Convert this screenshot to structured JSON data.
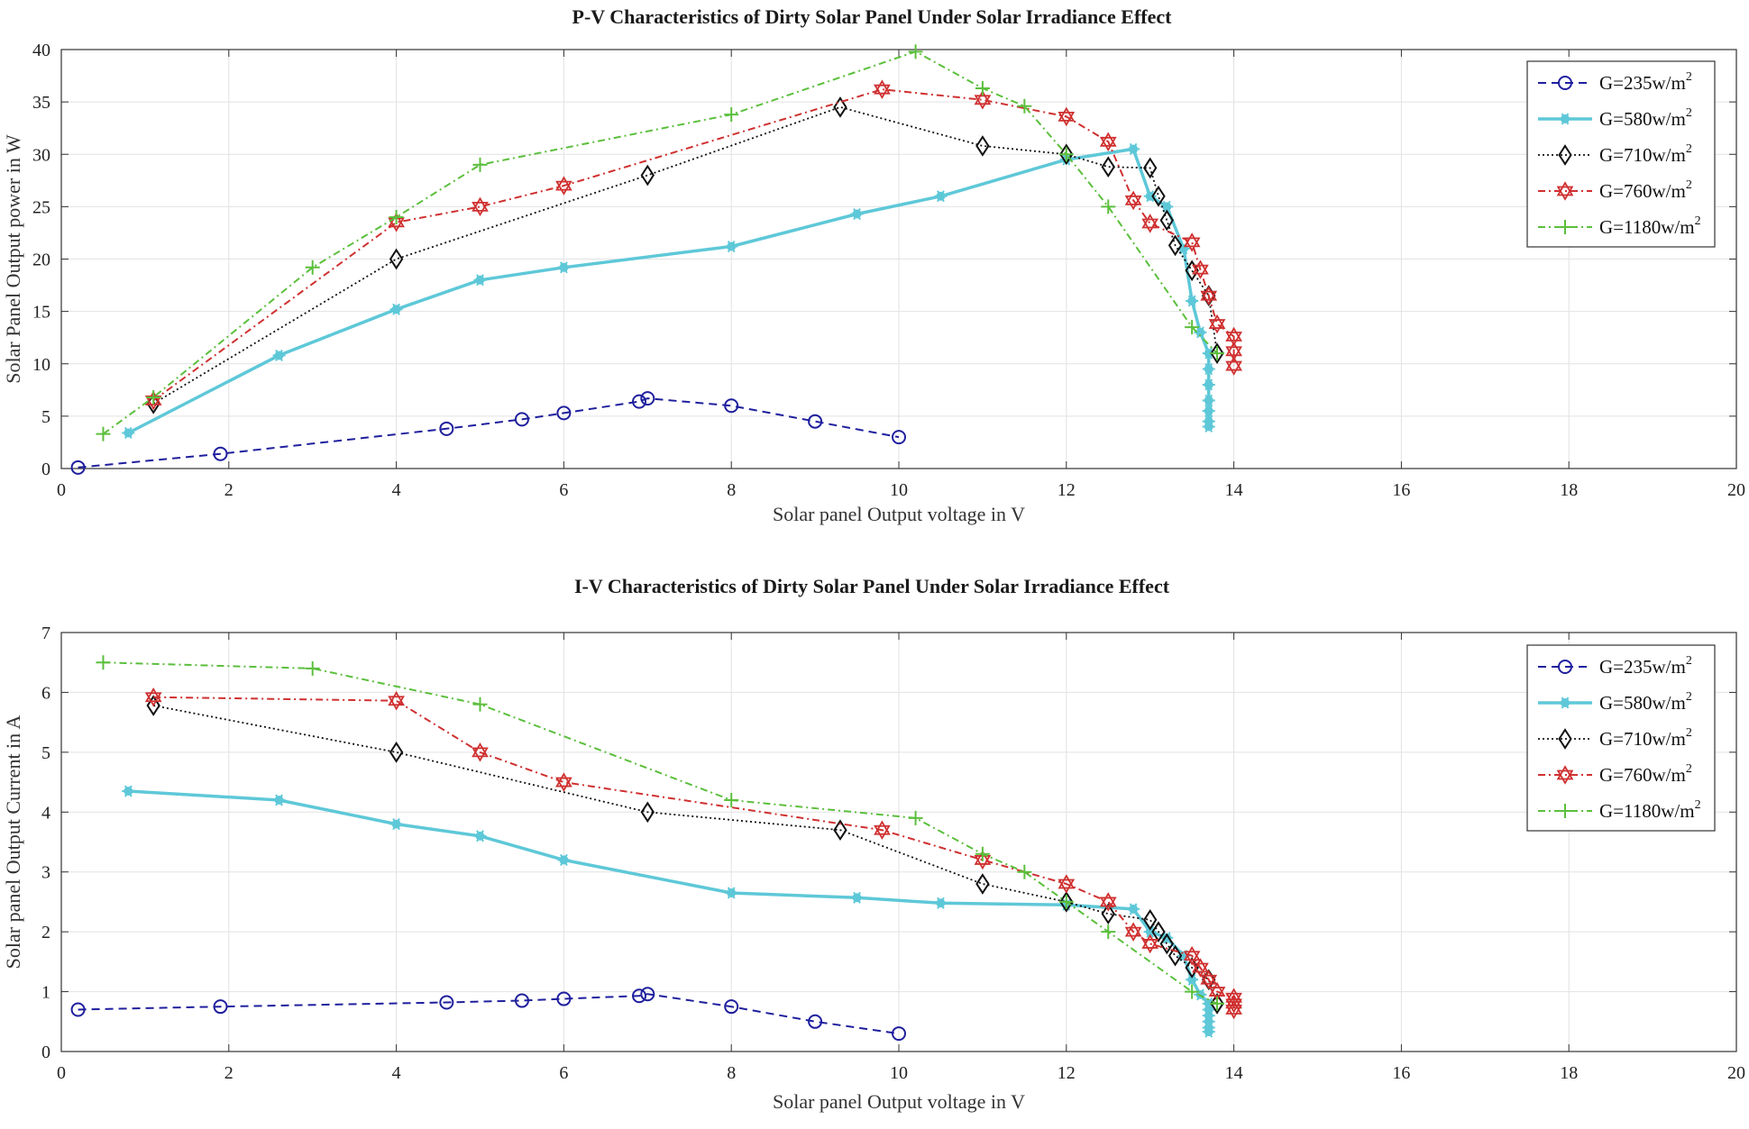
{
  "chart_data": [
    {
      "type": "line",
      "title": "P-V Characteristics of Dirty Solar Panel Under Solar Irradiance Effect",
      "xlabel": "Solar panel Output voltage in V",
      "ylabel": "Solar Panel Output power in W",
      "xlim": [
        0,
        20
      ],
      "ylim": [
        0,
        40
      ],
      "xticks": [
        0,
        2,
        4,
        6,
        8,
        10,
        12,
        14,
        16,
        18,
        20
      ],
      "yticks": [
        0,
        5,
        10,
        15,
        20,
        25,
        30,
        35,
        40
      ],
      "grid": true,
      "legend_position": "top-right",
      "series": [
        {
          "name": "G=235w/m",
          "sup": "2",
          "color": "#1f1f9e",
          "dash": "9,6",
          "marker": "circle",
          "width": 2,
          "points": [
            [
              0.2,
              0.1
            ],
            [
              1.9,
              1.4
            ],
            [
              4.6,
              3.8
            ],
            [
              5.5,
              4.7
            ],
            [
              6.0,
              5.3
            ],
            [
              6.9,
              6.4
            ],
            [
              7.0,
              6.7
            ],
            [
              8.0,
              6.0
            ],
            [
              9.0,
              4.5
            ],
            [
              10.0,
              3.0
            ]
          ]
        },
        {
          "name": "G=580w/m",
          "sup": "2",
          "color": "#5ec8d8",
          "dash": "",
          "marker": "asterisk",
          "width": 3.5,
          "points": [
            [
              0.8,
              3.4
            ],
            [
              2.6,
              10.8
            ],
            [
              4.0,
              15.2
            ],
            [
              5.0,
              18.0
            ],
            [
              6.0,
              19.2
            ],
            [
              8.0,
              21.2
            ],
            [
              9.5,
              24.3
            ],
            [
              10.5,
              26.0
            ],
            [
              12.0,
              29.5
            ],
            [
              12.8,
              30.5
            ],
            [
              13.0,
              26.0
            ],
            [
              13.2,
              25.0
            ],
            [
              13.4,
              21.0
            ],
            [
              13.5,
              16.0
            ],
            [
              13.6,
              13.0
            ],
            [
              13.7,
              11.0
            ],
            [
              13.7,
              9.5
            ],
            [
              13.7,
              8.0
            ],
            [
              13.7,
              6.5
            ],
            [
              13.7,
              5.5
            ],
            [
              13.7,
              4.5
            ],
            [
              13.7,
              4.0
            ]
          ]
        },
        {
          "name": "G=710w/m",
          "sup": "2",
          "color": "#111111",
          "dash": "2,3",
          "marker": "diamond",
          "width": 1.8,
          "points": [
            [
              1.1,
              6.2
            ],
            [
              4.0,
              20.0
            ],
            [
              7.0,
              28.0
            ],
            [
              9.3,
              34.5
            ],
            [
              11.0,
              30.8
            ],
            [
              12.0,
              30.0
            ],
            [
              12.5,
              28.8
            ],
            [
              13.0,
              28.7
            ],
            [
              13.1,
              26.0
            ],
            [
              13.2,
              23.7
            ],
            [
              13.3,
              21.3
            ],
            [
              13.5,
              18.9
            ],
            [
              13.7,
              16.5
            ],
            [
              13.8,
              11.0
            ]
          ]
        },
        {
          "name": "G=760w/m",
          "sup": "2",
          "color": "#d03030",
          "dash": "8,4,2,4",
          "marker": "star",
          "width": 2,
          "points": [
            [
              1.1,
              6.5
            ],
            [
              4.0,
              23.5
            ],
            [
              5.0,
              25.0
            ],
            [
              6.0,
              27.0
            ],
            [
              9.8,
              36.2
            ],
            [
              11.0,
              35.2
            ],
            [
              12.0,
              33.6
            ],
            [
              12.5,
              31.2
            ],
            [
              12.8,
              25.6
            ],
            [
              13.0,
              23.4
            ],
            [
              13.5,
              21.6
            ],
            [
              13.6,
              19.0
            ],
            [
              13.7,
              16.5
            ],
            [
              13.8,
              13.8
            ],
            [
              14.0,
              12.6
            ],
            [
              14.0,
              11.2
            ],
            [
              14.0,
              9.8
            ]
          ]
        },
        {
          "name": "G=1180w/m",
          "sup": "2",
          "color": "#5bbf3c",
          "dash": "8,4,2,4",
          "marker": "plus",
          "width": 2,
          "points": [
            [
              0.5,
              3.3
            ],
            [
              1.1,
              6.8
            ],
            [
              3.0,
              19.2
            ],
            [
              4.0,
              24.0
            ],
            [
              5.0,
              29.0
            ],
            [
              8.0,
              33.8
            ],
            [
              10.2,
              39.8
            ],
            [
              11.0,
              36.3
            ],
            [
              11.5,
              34.6
            ],
            [
              12.0,
              30.0
            ],
            [
              12.5,
              25.0
            ],
            [
              13.5,
              13.5
            ],
            [
              13.8,
              11.0
            ]
          ]
        }
      ]
    },
    {
      "type": "line",
      "title": "I-V Characteristics of Dirty Solar Panel Under Solar Irradiance Effect",
      "xlabel": "Solar panel Output voltage in V",
      "ylabel": "Solar panel Output Current in A",
      "xlim": [
        0,
        20
      ],
      "ylim": [
        0,
        7
      ],
      "xticks": [
        0,
        2,
        4,
        6,
        8,
        10,
        12,
        14,
        16,
        18,
        20
      ],
      "yticks": [
        0,
        1,
        2,
        3,
        4,
        5,
        6,
        7
      ],
      "grid": true,
      "legend_position": "top-right",
      "series": [
        {
          "name": "G=235w/m",
          "sup": "2",
          "color": "#1f1f9e",
          "dash": "9,6",
          "marker": "circle",
          "width": 2,
          "points": [
            [
              0.2,
              0.7
            ],
            [
              1.9,
              0.75
            ],
            [
              4.6,
              0.82
            ],
            [
              5.5,
              0.85
            ],
            [
              6.0,
              0.88
            ],
            [
              6.9,
              0.93
            ],
            [
              7.0,
              0.96
            ],
            [
              8.0,
              0.75
            ],
            [
              9.0,
              0.5
            ],
            [
              10.0,
              0.3
            ]
          ]
        },
        {
          "name": "G=580w/m",
          "sup": "2",
          "color": "#5ec8d8",
          "dash": "",
          "marker": "asterisk",
          "width": 3.5,
          "points": [
            [
              0.8,
              4.35
            ],
            [
              2.6,
              4.2
            ],
            [
              4.0,
              3.8
            ],
            [
              5.0,
              3.6
            ],
            [
              6.0,
              3.2
            ],
            [
              8.0,
              2.65
            ],
            [
              9.5,
              2.57
            ],
            [
              10.5,
              2.48
            ],
            [
              12.0,
              2.45
            ],
            [
              12.8,
              2.38
            ],
            [
              13.0,
              2.0
            ],
            [
              13.2,
              1.9
            ],
            [
              13.4,
              1.6
            ],
            [
              13.5,
              1.2
            ],
            [
              13.6,
              0.95
            ],
            [
              13.7,
              0.8
            ],
            [
              13.7,
              0.7
            ],
            [
              13.7,
              0.6
            ],
            [
              13.7,
              0.5
            ],
            [
              13.7,
              0.4
            ],
            [
              13.7,
              0.33
            ]
          ]
        },
        {
          "name": "G=710w/m",
          "sup": "2",
          "color": "#111111",
          "dash": "2,3",
          "marker": "diamond",
          "width": 1.8,
          "points": [
            [
              1.1,
              5.78
            ],
            [
              4.0,
              5.0
            ],
            [
              7.0,
              4.0
            ],
            [
              9.3,
              3.7
            ],
            [
              11.0,
              2.8
            ],
            [
              12.0,
              2.5
            ],
            [
              12.5,
              2.3
            ],
            [
              13.0,
              2.2
            ],
            [
              13.1,
              2.0
            ],
            [
              13.2,
              1.8
            ],
            [
              13.3,
              1.6
            ],
            [
              13.5,
              1.4
            ],
            [
              13.7,
              1.2
            ],
            [
              13.8,
              0.8
            ]
          ]
        },
        {
          "name": "G=760w/m",
          "sup": "2",
          "color": "#d03030",
          "dash": "8,4,2,4",
          "marker": "star",
          "width": 2,
          "points": [
            [
              1.1,
              5.92
            ],
            [
              4.0,
              5.86
            ],
            [
              5.0,
              5.0
            ],
            [
              6.0,
              4.5
            ],
            [
              9.8,
              3.7
            ],
            [
              11.0,
              3.2
            ],
            [
              12.0,
              2.8
            ],
            [
              12.5,
              2.5
            ],
            [
              12.8,
              2.0
            ],
            [
              13.0,
              1.8
            ],
            [
              13.5,
              1.6
            ],
            [
              13.6,
              1.4
            ],
            [
              13.7,
              1.2
            ],
            [
              13.8,
              1.0
            ],
            [
              14.0,
              0.9
            ],
            [
              14.0,
              0.8
            ],
            [
              14.0,
              0.7
            ]
          ]
        },
        {
          "name": "G=1180w/m",
          "sup": "2",
          "color": "#5bbf3c",
          "dash": "8,4,2,4",
          "marker": "plus",
          "width": 2,
          "points": [
            [
              0.5,
              6.5
            ],
            [
              3.0,
              6.4
            ],
            [
              5.0,
              5.8
            ],
            [
              8.0,
              4.2
            ],
            [
              10.2,
              3.9
            ],
            [
              11.0,
              3.3
            ],
            [
              11.5,
              3.0
            ],
            [
              12.0,
              2.5
            ],
            [
              12.5,
              2.0
            ],
            [
              13.5,
              1.0
            ],
            [
              13.8,
              0.8
            ]
          ]
        }
      ]
    }
  ]
}
